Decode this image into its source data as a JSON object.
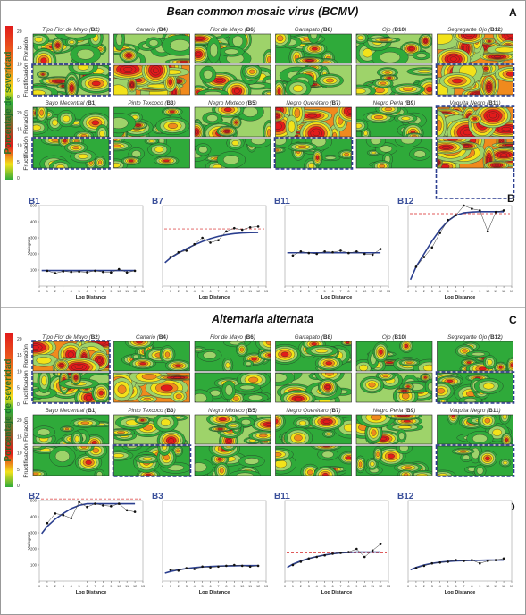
{
  "colors": {
    "red": "#e21b1b",
    "orange": "#f08a1d",
    "yellow": "#f2e21a",
    "lightgreen": "#9ed36a",
    "green": "#2faa3a",
    "darkgreen": "#1d7f2d",
    "curve": "#2b3f8f",
    "sill": "#e05a5a",
    "panelTitle": "#3a4f9a",
    "dashBox": "#2d3f90"
  },
  "legend": {
    "label": "Porcentaje de severidad",
    "ticks": [
      "20",
      "15",
      "10",
      "5",
      "0",
      "20",
      "15",
      "10",
      "5",
      "0"
    ]
  },
  "sections": [
    {
      "id": "bcmv",
      "title": "Bean common mosaic virus (BCMV)",
      "map_letter": "A",
      "chart_letter": "B",
      "row_labels": [
        "Floración",
        "Fructificación",
        "Floración",
        "Fructificación"
      ],
      "map_labels_top": [
        {
          "name": "Tipo Flor de Mayo",
          "code": "B2"
        },
        {
          "name": "Canario",
          "code": "B4"
        },
        {
          "name": "Flor de Mayo",
          "code": "B6"
        },
        {
          "name": "Garrapato",
          "code": "B8"
        },
        {
          "name": "Ojo",
          "code": "B10"
        },
        {
          "name": "Segregante Ojo",
          "code": "B12"
        }
      ],
      "map_labels_bottom": [
        {
          "name": "Bayo Mecentral",
          "code": "B1"
        },
        {
          "name": "Pinto Texcoco",
          "code": "B3"
        },
        {
          "name": "Negro Mixteco",
          "code": "B5"
        },
        {
          "name": "Negro Querétaro",
          "code": "B7"
        },
        {
          "name": "Negro Perla",
          "code": "B9"
        },
        {
          "name": "Vaquita Negro",
          "code": "B11"
        }
      ]
    },
    {
      "id": "alternaria",
      "title": "Alternaria alternata",
      "map_letter": "C",
      "chart_letter": "D",
      "row_labels": [
        "Floración",
        "Fructificación",
        "Floración",
        "Fructificación"
      ],
      "map_labels_top": [
        {
          "name": "Tipo Flor de Mayo",
          "code": "B2"
        },
        {
          "name": "Canario",
          "code": "B4"
        },
        {
          "name": "Flor de Mayo",
          "code": "B6"
        },
        {
          "name": "Garrapato",
          "code": "B8"
        },
        {
          "name": "Ojo",
          "code": "B10"
        },
        {
          "name": "Segregante Ojo",
          "code": "B12"
        }
      ],
      "map_labels_bottom": [
        {
          "name": "Bayo Mecentral",
          "code": "B1"
        },
        {
          "name": "Pinto Texcoco",
          "code": "B3"
        },
        {
          "name": "Negro Mixteco",
          "code": "B5"
        },
        {
          "name": "Negro Querétaro",
          "code": "B7"
        },
        {
          "name": "Negro Perla",
          "code": "B9"
        },
        {
          "name": "Vaquita Negro",
          "code": "B11"
        }
      ]
    }
  ],
  "chart_data": [
    {
      "type": "scatter",
      "title": "B1",
      "section": "bcmv",
      "xlabel": "Log Distance",
      "ylabel": "Variogram",
      "x": [
        1,
        2,
        3,
        4,
        5,
        6,
        7,
        8,
        9,
        10,
        11,
        12
      ],
      "y": [
        95,
        80,
        92,
        88,
        90,
        86,
        95,
        88,
        85,
        105,
        85,
        95
      ],
      "model": [
        97,
        97,
        97,
        97,
        97,
        97,
        97,
        97,
        97,
        97,
        97,
        97
      ],
      "sill": null,
      "xlim": [
        0,
        13
      ],
      "ylim": [
        0,
        500
      ],
      "yticks": [
        100,
        200,
        300,
        400,
        500
      ]
    },
    {
      "type": "scatter",
      "title": "B7",
      "section": "bcmv",
      "xlabel": "Log Distance",
      "ylabel": "",
      "x": [
        1,
        2,
        3,
        4,
        5,
        6,
        7,
        8,
        9,
        10,
        11,
        12
      ],
      "y": [
        180,
        210,
        220,
        260,
        300,
        270,
        285,
        340,
        360,
        350,
        365,
        370
      ],
      "model": [
        175,
        205,
        232,
        256,
        277,
        295,
        309,
        319,
        326,
        330,
        332,
        333
      ],
      "sill": 355,
      "xlim": [
        0,
        13
      ],
      "ylim": [
        0,
        500
      ],
      "yticks": []
    },
    {
      "type": "scatter",
      "title": "B11",
      "section": "bcmv",
      "xlabel": "Log Distance",
      "ylabel": "",
      "x": [
        1,
        2,
        3,
        4,
        5,
        6,
        7,
        8,
        9,
        10,
        11,
        12
      ],
      "y": [
        190,
        215,
        205,
        200,
        215,
        210,
        220,
        205,
        215,
        200,
        195,
        230
      ],
      "model": [
        207,
        207,
        207,
        207,
        207,
        207,
        207,
        207,
        207,
        207,
        207,
        207
      ],
      "sill": null,
      "xlim": [
        0,
        13
      ],
      "ylim": [
        0,
        500
      ],
      "yticks": []
    },
    {
      "type": "scatter",
      "title": "B12",
      "section": "bcmv",
      "xlabel": "Log Distance",
      "ylabel": "",
      "x": [
        1,
        2,
        3,
        4,
        5,
        6,
        7,
        8,
        9,
        10,
        11,
        12
      ],
      "y": [
        120,
        180,
        240,
        330,
        410,
        440,
        500,
        480,
        470,
        340,
        460,
        470
      ],
      "model": [
        120,
        200,
        280,
        350,
        405,
        440,
        455,
        460,
        462,
        462,
        462,
        462
      ],
      "sill": 450,
      "xlim": [
        0,
        13
      ],
      "ylim": [
        0,
        500
      ],
      "yticks": []
    },
    {
      "type": "scatter",
      "title": "B2",
      "section": "alternaria",
      "xlabel": "Log Distance",
      "ylabel": "Variogram",
      "x": [
        1,
        2,
        3,
        4,
        5,
        6,
        7,
        8,
        9,
        10,
        11,
        12
      ],
      "y": [
        360,
        420,
        410,
        390,
        490,
        460,
        480,
        470,
        465,
        480,
        440,
        430
      ],
      "model": [
        340,
        385,
        420,
        450,
        470,
        480,
        480,
        480,
        480,
        480,
        480,
        480
      ],
      "sill": 510,
      "xlim": [
        0,
        13
      ],
      "ylim": [
        0,
        500
      ],
      "yticks": [
        100,
        200,
        300,
        400,
        500
      ]
    },
    {
      "type": "scatter",
      "title": "B3",
      "section": "alternaria",
      "xlabel": "Log Distance",
      "ylabel": "",
      "x": [
        1,
        2,
        3,
        4,
        5,
        6,
        7,
        8,
        9,
        10,
        11,
        12
      ],
      "y": [
        70,
        65,
        80,
        75,
        90,
        85,
        90,
        95,
        100,
        95,
        90,
        95
      ],
      "model": [
        60,
        70,
        78,
        84,
        88,
        91,
        93,
        94,
        95,
        96,
        96,
        96
      ],
      "sill": null,
      "xlim": [
        0,
        13
      ],
      "ylim": [
        0,
        500
      ],
      "yticks": []
    },
    {
      "type": "scatter",
      "title": "B11",
      "section": "alternaria",
      "xlabel": "Log Distance",
      "ylabel": "",
      "x": [
        1,
        2,
        3,
        4,
        5,
        6,
        7,
        8,
        9,
        10,
        11,
        12
      ],
      "y": [
        100,
        120,
        140,
        150,
        160,
        170,
        175,
        180,
        200,
        150,
        190,
        230
      ],
      "model": [
        105,
        125,
        140,
        152,
        162,
        170,
        175,
        178,
        180,
        180,
        180,
        180
      ],
      "sill": 175,
      "xlim": [
        0,
        13
      ],
      "ylim": [
        0,
        500
      ],
      "yticks": []
    },
    {
      "type": "scatter",
      "title": "B12",
      "section": "alternaria",
      "xlabel": "Log Distance",
      "ylabel": "",
      "x": [
        1,
        2,
        3,
        4,
        5,
        6,
        7,
        8,
        9,
        10,
        11,
        12
      ],
      "y": [
        80,
        95,
        110,
        115,
        120,
        130,
        125,
        130,
        110,
        125,
        130,
        140
      ],
      "model": [
        85,
        100,
        110,
        117,
        122,
        125,
        127,
        128,
        129,
        130,
        130,
        130
      ],
      "sill": 130,
      "xlim": [
        0,
        13
      ],
      "ylim": [
        0,
        500
      ],
      "yticks": []
    }
  ]
}
